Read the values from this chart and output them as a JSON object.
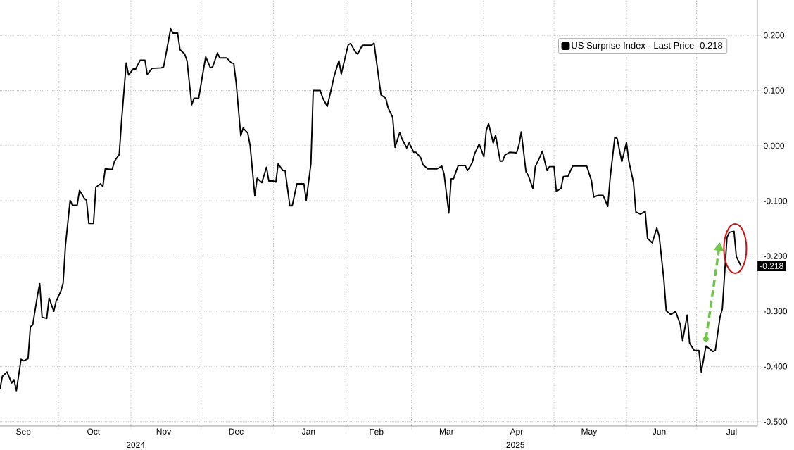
{
  "chart_data": {
    "type": "line",
    "series": [
      {
        "name": "US Surprise Index - Last Price -0.218",
        "color": "#000000",
        "x": [
          "2024-09-06",
          "2024-09-07",
          "2024-09-09",
          "2024-09-11",
          "2024-09-12",
          "2024-09-13",
          "2024-09-15",
          "2024-09-16",
          "2024-09-18",
          "2024-09-19",
          "2024-09-20",
          "2024-09-22",
          "2024-09-23",
          "2024-09-24",
          "2024-09-26",
          "2024-09-27",
          "2024-09-29",
          "2024-09-30",
          "2024-10-02",
          "2024-10-03",
          "2024-10-04",
          "2024-10-06",
          "2024-10-07",
          "2024-10-09",
          "2024-10-10",
          "2024-10-12",
          "2024-10-13",
          "2024-10-14",
          "2024-10-16",
          "2024-10-17",
          "2024-10-19",
          "2024-10-20",
          "2024-10-21",
          "2024-10-24",
          "2024-10-25",
          "2024-10-27",
          "2024-10-28",
          "2024-10-30",
          "2024-10-31",
          "2024-11-02",
          "2024-11-03",
          "2024-11-05",
          "2024-11-07",
          "2024-11-08",
          "2024-11-10",
          "2024-11-14",
          "2024-11-15",
          "2024-11-18",
          "2024-11-19",
          "2024-11-21",
          "2024-11-22",
          "2024-11-24",
          "2024-11-25",
          "2024-11-27",
          "2024-11-28",
          "2024-11-30",
          "2024-12-02",
          "2024-12-03",
          "2024-12-05",
          "2024-12-06",
          "2024-12-08",
          "2024-12-09",
          "2024-12-12",
          "2024-12-14",
          "2024-12-15",
          "2024-12-16",
          "2024-12-18",
          "2024-12-19",
          "2024-12-21",
          "2024-12-22",
          "2024-12-24",
          "2024-12-25",
          "2024-12-27",
          "2024-12-29",
          "2024-12-30",
          "2025-01-01",
          "2025-01-02",
          "2025-01-03",
          "2025-01-05",
          "2025-01-06",
          "2025-01-08",
          "2025-01-09",
          "2025-01-11",
          "2025-01-14",
          "2025-01-15",
          "2025-01-17",
          "2025-01-18",
          "2025-01-21",
          "2025-01-22",
          "2025-01-24",
          "2025-01-26",
          "2025-01-27",
          "2025-01-29",
          "2025-01-30",
          "2025-02-01",
          "2025-02-02",
          "2025-02-03",
          "2025-02-05",
          "2025-02-06",
          "2025-02-08",
          "2025-02-12",
          "2025-02-13",
          "2025-02-15",
          "2025-02-16",
          "2025-02-18",
          "2025-02-19",
          "2025-02-21",
          "2025-02-22",
          "2025-02-24",
          "2025-02-25",
          "2025-02-27",
          "2025-02-28",
          "2025-03-02",
          "2025-03-03",
          "2025-03-05",
          "2025-03-06",
          "2025-03-08",
          "2025-03-12",
          "2025-03-14",
          "2025-03-15",
          "2025-03-17",
          "2025-03-18",
          "2025-03-19",
          "2025-03-21",
          "2025-03-24",
          "2025-03-25",
          "2025-03-27",
          "2025-03-28",
          "2025-03-30",
          "2025-04-01",
          "2025-04-02",
          "2025-04-03",
          "2025-04-05",
          "2025-04-06",
          "2025-04-08",
          "2025-04-09",
          "2025-04-10",
          "2025-04-12",
          "2025-04-15",
          "2025-04-16",
          "2025-04-17",
          "2025-04-19",
          "2025-04-20",
          "2025-04-22",
          "2025-04-23",
          "2025-04-25",
          "2025-04-26",
          "2025-04-28",
          "2025-04-29",
          "2025-05-01",
          "2025-05-02",
          "2025-05-04",
          "2025-05-05",
          "2025-05-07",
          "2025-05-09",
          "2025-05-15",
          "2025-05-17",
          "2025-05-18",
          "2025-05-20",
          "2025-05-22",
          "2025-05-24",
          "2025-05-25",
          "2025-05-27",
          "2025-05-28",
          "2025-05-30",
          "2025-06-01",
          "2025-06-02",
          "2025-06-04",
          "2025-06-05",
          "2025-06-07",
          "2025-06-09",
          "2025-06-10",
          "2025-06-12",
          "2025-06-14",
          "2025-06-15",
          "2025-06-17",
          "2025-06-18",
          "2025-06-20",
          "2025-06-22",
          "2025-06-24",
          "2025-06-25",
          "2025-06-27",
          "2025-06-28",
          "2025-06-30",
          "2025-07-02",
          "2025-07-03",
          "2025-07-05",
          "2025-07-08",
          "2025-07-09",
          "2025-07-11",
          "2025-07-12",
          "2025-07-14",
          "2025-07-15",
          "2025-07-17",
          "2025-07-18",
          "2025-07-20"
        ],
        "values": [
          -0.441,
          -0.418,
          -0.41,
          -0.43,
          -0.424,
          -0.444,
          -0.387,
          -0.39,
          -0.386,
          -0.328,
          -0.325,
          -0.272,
          -0.25,
          -0.311,
          -0.313,
          -0.276,
          -0.3,
          -0.282,
          -0.264,
          -0.249,
          -0.181,
          -0.099,
          -0.108,
          -0.108,
          -0.081,
          -0.095,
          -0.099,
          -0.141,
          -0.141,
          -0.075,
          -0.069,
          -0.074,
          -0.042,
          -0.043,
          -0.028,
          -0.016,
          0.045,
          0.15,
          0.128,
          0.139,
          0.139,
          0.155,
          0.155,
          0.129,
          0.14,
          0.141,
          0.143,
          0.212,
          0.204,
          0.204,
          0.174,
          0.166,
          0.154,
          0.074,
          0.086,
          0.086,
          0.137,
          0.161,
          0.141,
          0.143,
          0.168,
          0.159,
          0.159,
          0.15,
          0.149,
          0.115,
          0.018,
          0.032,
          0.023,
          0.0,
          -0.091,
          -0.059,
          -0.067,
          -0.039,
          -0.064,
          -0.064,
          -0.066,
          -0.033,
          -0.045,
          -0.046,
          -0.109,
          -0.109,
          -0.069,
          -0.069,
          -0.099,
          -0.033,
          0.1,
          0.1,
          0.087,
          0.071,
          0.108,
          0.127,
          0.154,
          0.13,
          0.166,
          0.183,
          0.185,
          0.17,
          0.166,
          0.182,
          0.182,
          0.186,
          0.123,
          0.092,
          0.086,
          0.069,
          0.051,
          -0.003,
          0.024,
          0.012,
          -0.004,
          0.005,
          -0.012,
          -0.012,
          -0.022,
          -0.035,
          -0.042,
          -0.042,
          -0.037,
          -0.052,
          -0.122,
          -0.06,
          -0.06,
          -0.036,
          -0.036,
          -0.045,
          -0.031,
          -0.015,
          0.003,
          -0.02,
          0.027,
          0.04,
          0.005,
          0.019,
          -0.028,
          -0.028,
          -0.017,
          -0.012,
          -0.013,
          0.001,
          0.025,
          -0.047,
          -0.054,
          -0.078,
          -0.038,
          -0.02,
          -0.01,
          -0.045,
          -0.038,
          -0.038,
          -0.083,
          -0.077,
          -0.056,
          -0.055,
          -0.037,
          -0.037,
          -0.063,
          -0.093,
          -0.09,
          -0.09,
          -0.11,
          -0.059,
          0.015,
          0.013,
          -0.029,
          0.006,
          -0.028,
          -0.067,
          -0.12,
          -0.124,
          -0.119,
          -0.168,
          -0.176,
          -0.149,
          -0.164,
          -0.243,
          -0.299,
          -0.306,
          -0.3,
          -0.324,
          -0.353,
          -0.307,
          -0.358,
          -0.371,
          -0.371,
          -0.41,
          -0.363,
          -0.373,
          -0.371,
          -0.311,
          -0.296,
          -0.166,
          -0.157,
          -0.155,
          -0.201,
          -0.218
        ]
      }
    ],
    "xlim": [
      "2024-09-06",
      "2025-07-27"
    ],
    "xticks": [
      {
        "value": "2024-09-16",
        "label": "Sep"
      },
      {
        "value": "2024-10-01",
        "label": null
      },
      {
        "value": "2024-10-16",
        "label": "Oct"
      },
      {
        "value": "2024-11-01",
        "label": null
      },
      {
        "value": "2024-11-15",
        "label": "Nov"
      },
      {
        "value": "2024-12-01",
        "label": null
      },
      {
        "value": "2024-12-16",
        "label": "Dec"
      },
      {
        "value": "2025-01-01",
        "label": null
      },
      {
        "value": "2025-01-16",
        "label": "Jan"
      },
      {
        "value": "2025-02-01",
        "label": null
      },
      {
        "value": "2025-02-14",
        "label": "Feb"
      },
      {
        "value": "2025-03-01",
        "label": null
      },
      {
        "value": "2025-03-16",
        "label": "Mar"
      },
      {
        "value": "2025-04-01",
        "label": null
      },
      {
        "value": "2025-04-15",
        "label": "Apr"
      },
      {
        "value": "2025-05-01",
        "label": null
      },
      {
        "value": "2025-05-16",
        "label": "May"
      },
      {
        "value": "2025-06-01",
        "label": null
      },
      {
        "value": "2025-06-15",
        "label": "Jun"
      },
      {
        "value": "2025-07-01",
        "label": null
      },
      {
        "value": "2025-07-16",
        "label": "Jul"
      }
    ],
    "ylim": [
      -0.508,
      0.264
    ],
    "yticks": [
      {
        "value": -0.5,
        "label": "-0.500"
      },
      {
        "value": -0.4,
        "label": "-0.400"
      },
      {
        "value": -0.3,
        "label": "-0.300"
      },
      {
        "value": -0.2,
        "label": "-0.200"
      },
      {
        "value": -0.1,
        "label": "-0.100"
      },
      {
        "value": 0,
        "label": "0.000"
      },
      {
        "value": 0.1,
        "label": "0.100"
      },
      {
        "value": 0.2,
        "label": "0.200"
      }
    ],
    "grid": true,
    "legend": "top right",
    "annotations": [
      {
        "text": "-0.218",
        "x": "2025-07-20",
        "y": -0.218
      },
      "2024",
      "2025"
    ]
  }
}
